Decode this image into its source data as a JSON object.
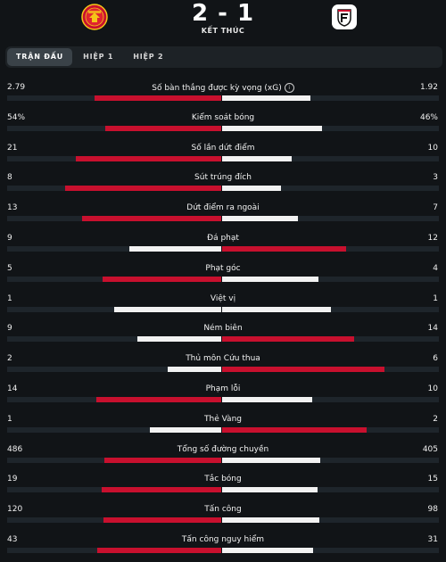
{
  "match": {
    "score": "2 - 1",
    "status": "KẾT THÚC",
    "home_crest_icon": "manchester-united-crest",
    "away_crest_icon": "fulham-crest"
  },
  "tabs": [
    {
      "label": "TRẬN ĐẤU",
      "active": true
    },
    {
      "label": "HIỆP 1",
      "active": false
    },
    {
      "label": "HIỆP 2",
      "active": false
    }
  ],
  "colors": {
    "winner": "#c8102e",
    "loser": "#f2f2f2",
    "track": "#1e252b"
  },
  "stats": [
    {
      "label": "Số bàn thắng được kỳ vọng (xG)",
      "home": "2.79",
      "away": "1.92",
      "home_num": 2.79,
      "away_num": 1.92,
      "info": true
    },
    {
      "label": "Kiểm soát bóng",
      "home": "54%",
      "away": "46%",
      "home_num": 54,
      "away_num": 46
    },
    {
      "label": "Số lần dứt điểm",
      "home": "21",
      "away": "10",
      "home_num": 21,
      "away_num": 10
    },
    {
      "label": "Sút trúng đích",
      "home": "8",
      "away": "3",
      "home_num": 8,
      "away_num": 3
    },
    {
      "label": "Dứt điểm ra ngoài",
      "home": "13",
      "away": "7",
      "home_num": 13,
      "away_num": 7
    },
    {
      "label": "Đá phạt",
      "home": "9",
      "away": "12",
      "home_num": 9,
      "away_num": 12
    },
    {
      "label": "Phạt góc",
      "home": "5",
      "away": "4",
      "home_num": 5,
      "away_num": 4
    },
    {
      "label": "Việt vị",
      "home": "1",
      "away": "1",
      "home_num": 1,
      "away_num": 1
    },
    {
      "label": "Ném biên",
      "home": "9",
      "away": "14",
      "home_num": 9,
      "away_num": 14
    },
    {
      "label": "Thủ môn Cứu thua",
      "home": "2",
      "away": "6",
      "home_num": 2,
      "away_num": 6
    },
    {
      "label": "Phạm lỗi",
      "home": "14",
      "away": "10",
      "home_num": 14,
      "away_num": 10
    },
    {
      "label": "Thẻ Vàng",
      "home": "1",
      "away": "2",
      "home_num": 1,
      "away_num": 2
    },
    {
      "label": "Tổng số đường chuyền",
      "home": "486",
      "away": "405",
      "home_num": 486,
      "away_num": 405
    },
    {
      "label": "Tắc bóng",
      "home": "19",
      "away": "15",
      "home_num": 19,
      "away_num": 15
    },
    {
      "label": "Tấn công",
      "home": "120",
      "away": "98",
      "home_num": 120,
      "away_num": 98
    },
    {
      "label": "Tấn công nguy hiểm",
      "home": "43",
      "away": "31",
      "home_num": 43,
      "away_num": 31
    }
  ]
}
